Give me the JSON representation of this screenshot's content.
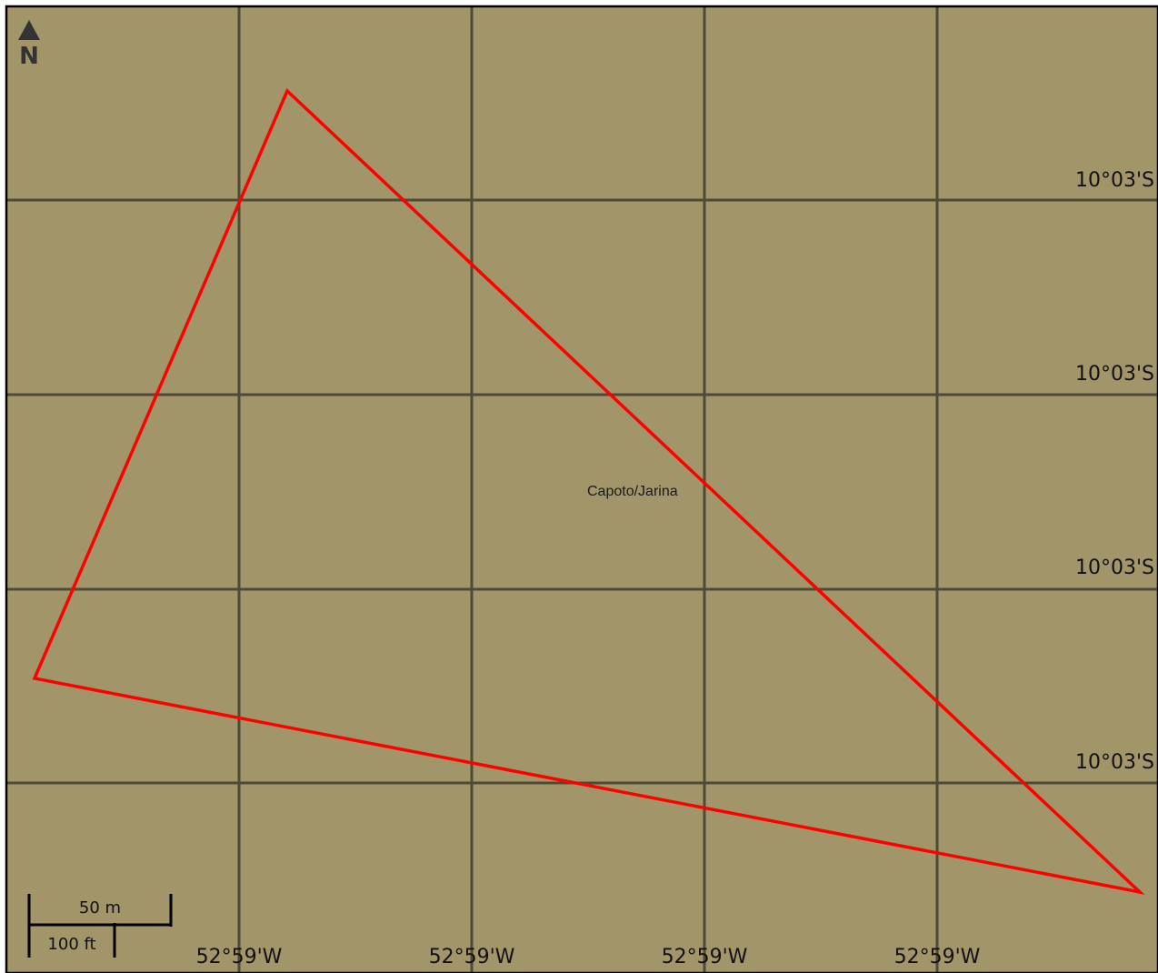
{
  "map": {
    "background_color": "#a19569",
    "grid_color": "#4f4a36",
    "border_color": "#000000",
    "boundary_color": "#ff0000"
  },
  "north_arrow": {
    "icon": "north-arrow-icon",
    "letter": "N"
  },
  "place": {
    "name": "Capoto/Jarina"
  },
  "latitude_labels": [
    "10°03'S",
    "10°03'S",
    "10°03'S",
    "10°03'S"
  ],
  "longitude_labels": [
    "52°59'W",
    "52°59'W",
    "52°59'W",
    "52°59'W"
  ],
  "scale_bar": {
    "metric_label": "50 m",
    "imperial_label": "100 ft"
  }
}
